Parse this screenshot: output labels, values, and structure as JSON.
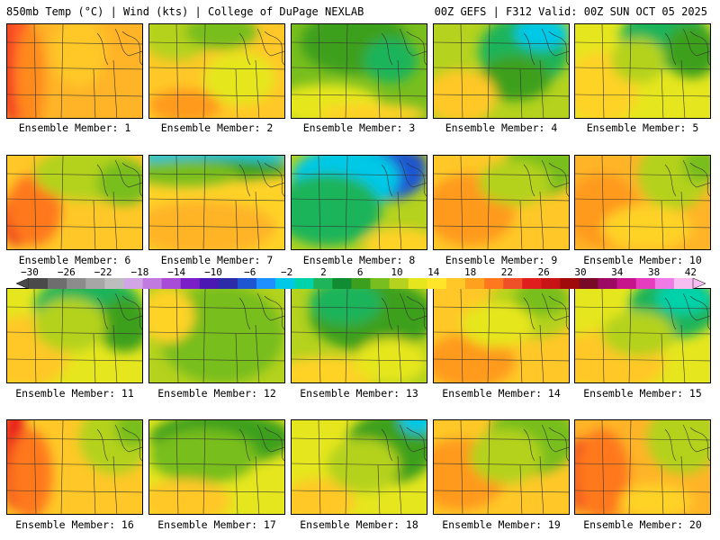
{
  "header": {
    "left_title": "850mb Temp (°C) | Wind (kts) | College of DuPage NEXLAB",
    "right_title": "00Z GEFS | F312 Valid: 00Z SUN OCT 05 2025"
  },
  "colorbar": {
    "tick_labels": [
      "−30",
      "−26",
      "−22",
      "−18",
      "−14",
      "−10",
      "−6",
      "−2",
      "2",
      "6",
      "10",
      "14",
      "18",
      "22",
      "26",
      "30",
      "34",
      "38",
      "42"
    ],
    "colors": [
      "#4a4a4a",
      "#6e6e6e",
      "#8c8c8c",
      "#a6a6a6",
      "#bdbdbd",
      "#d2a6e6",
      "#c07ae0",
      "#a84cd8",
      "#7a1fc8",
      "#4b18b4",
      "#2c2ca8",
      "#1e56d2",
      "#1e90ff",
      "#00c8e6",
      "#00d2aa",
      "#1eb45a",
      "#128c32",
      "#3ca01e",
      "#78be1e",
      "#b4d21e",
      "#e6e61e",
      "#ffe628",
      "#ffc828",
      "#ffa01e",
      "#ff781e",
      "#f05028",
      "#e01e1e",
      "#c81414",
      "#a00a0a",
      "#780a28",
      "#9c0a64",
      "#c8148c",
      "#e63cbe",
      "#f07ae6",
      "#f8bef2"
    ]
  },
  "panels": [
    {
      "label": "Ensemble Member: 1",
      "base": "#ffb428",
      "zones": [
        [
          "#e81e1e",
          6,
          40,
          14,
          70
        ],
        [
          "#ff5a28",
          14,
          30,
          12,
          80
        ],
        [
          "#ff8a1e",
          26,
          60,
          16,
          60
        ],
        [
          "#ffc828",
          80,
          30,
          30,
          40
        ]
      ]
    },
    {
      "label": "Ensemble Member: 2",
      "base": "#ffc828",
      "zones": [
        [
          "#b4d21e",
          30,
          10,
          40,
          30
        ],
        [
          "#78be1e",
          80,
          8,
          40,
          20
        ],
        [
          "#ff9a1e",
          40,
          90,
          40,
          18
        ],
        [
          "#e6e61e",
          100,
          60,
          40,
          30
        ]
      ]
    },
    {
      "label": "Ensemble Member: 3",
      "base": "#78be1e",
      "zones": [
        [
          "#3ca01e",
          70,
          20,
          60,
          35
        ],
        [
          "#1eb45a",
          110,
          40,
          30,
          25
        ],
        [
          "#e6e61e",
          40,
          90,
          60,
          24
        ],
        [
          "#ffd228",
          90,
          100,
          60,
          12
        ]
      ]
    },
    {
      "label": "Ensemble Member: 4",
      "base": "#b4d21e",
      "zones": [
        [
          "#1eb45a",
          100,
          30,
          50,
          40
        ],
        [
          "#00c8e6",
          120,
          10,
          30,
          18
        ],
        [
          "#3ca01e",
          90,
          60,
          40,
          25
        ],
        [
          "#ffc828",
          30,
          80,
          40,
          30
        ]
      ]
    },
    {
      "label": "Ensemble Member: 5",
      "base": "#e6e61e",
      "zones": [
        [
          "#1eb45a",
          100,
          15,
          50,
          35
        ],
        [
          "#3ca01e",
          130,
          30,
          30,
          30
        ],
        [
          "#ffd228",
          30,
          70,
          40,
          40
        ],
        [
          "#b4d21e",
          70,
          40,
          30,
          25
        ]
      ]
    },
    {
      "label": "Ensemble Member: 6",
      "base": "#ffc828",
      "zones": [
        [
          "#e81e1e",
          12,
          70,
          18,
          30
        ],
        [
          "#ff781e",
          30,
          60,
          30,
          40
        ],
        [
          "#b4d21e",
          90,
          20,
          60,
          30
        ],
        [
          "#78be1e",
          130,
          30,
          30,
          25
        ]
      ]
    },
    {
      "label": "Ensemble Member: 7",
      "base": "#ffd228",
      "zones": [
        [
          "#00c8e6",
          70,
          0,
          90,
          10
        ],
        [
          "#3ca01e",
          70,
          15,
          90,
          12
        ],
        [
          "#78be1e",
          40,
          20,
          60,
          14
        ],
        [
          "#ffb428",
          60,
          80,
          80,
          30
        ]
      ]
    },
    {
      "label": "Ensemble Member: 8",
      "base": "#b4d21e",
      "zones": [
        [
          "#2c2ca8",
          110,
          10,
          40,
          20
        ],
        [
          "#1e56d2",
          100,
          20,
          50,
          30
        ],
        [
          "#00c8e6",
          60,
          25,
          60,
          35
        ],
        [
          "#1eb45a",
          40,
          60,
          60,
          40
        ],
        [
          "#ffd228",
          120,
          100,
          40,
          20
        ]
      ]
    },
    {
      "label": "Ensemble Member: 9",
      "base": "#ffc828",
      "zones": [
        [
          "#ff9a1e",
          40,
          60,
          50,
          40
        ],
        [
          "#78be1e",
          120,
          10,
          40,
          35
        ],
        [
          "#b4d21e",
          90,
          30,
          40,
          25
        ]
      ]
    },
    {
      "label": "Ensemble Member: 10",
      "base": "#ffb428",
      "zones": [
        [
          "#ff9a1e",
          30,
          60,
          40,
          40
        ],
        [
          "#b4d21e",
          110,
          20,
          40,
          40
        ],
        [
          "#78be1e",
          140,
          10,
          20,
          20
        ],
        [
          "#ffd228",
          80,
          80,
          50,
          25
        ]
      ]
    },
    {
      "label": "Ensemble Member: 11",
      "base": "#e6e61e",
      "zones": [
        [
          "#1eb45a",
          90,
          20,
          60,
          35
        ],
        [
          "#3ca01e",
          130,
          40,
          30,
          30
        ],
        [
          "#ffc828",
          20,
          70,
          50,
          40
        ],
        [
          "#b4d21e",
          70,
          40,
          40,
          30
        ]
      ]
    },
    {
      "label": "Ensemble Member: 12",
      "base": "#b4d21e",
      "zones": [
        [
          "#00c8e6",
          80,
          50,
          28,
          24
        ],
        [
          "#1eb45a",
          75,
          50,
          48,
          38
        ],
        [
          "#78be1e",
          80,
          50,
          70,
          55
        ],
        [
          "#ffd228",
          20,
          30,
          30,
          30
        ]
      ]
    },
    {
      "label": "Ensemble Member: 13",
      "base": "#b4d21e",
      "zones": [
        [
          "#3ca01e",
          90,
          30,
          70,
          40
        ],
        [
          "#1eb45a",
          60,
          15,
          40,
          25
        ],
        [
          "#ffd228",
          40,
          95,
          60,
          20
        ],
        [
          "#e6e61e",
          110,
          80,
          40,
          25
        ]
      ]
    },
    {
      "label": "Ensemble Member: 14",
      "base": "#ffc828",
      "zones": [
        [
          "#b4d21e",
          110,
          20,
          50,
          35
        ],
        [
          "#78be1e",
          120,
          10,
          30,
          20
        ],
        [
          "#ff9a1e",
          40,
          80,
          50,
          30
        ],
        [
          "#e6e61e",
          70,
          40,
          40,
          25
        ]
      ]
    },
    {
      "label": "Ensemble Member: 15",
      "base": "#e6e61e",
      "zones": [
        [
          "#1eb45a",
          110,
          20,
          50,
          35
        ],
        [
          "#00d2aa",
          120,
          10,
          30,
          18
        ],
        [
          "#ffc828",
          40,
          80,
          60,
          35
        ],
        [
          "#b4d21e",
          70,
          50,
          40,
          25
        ]
      ]
    },
    {
      "label": "Ensemble Member: 16",
      "base": "#ffc828",
      "zones": [
        [
          "#e81e1e",
          8,
          40,
          14,
          60
        ],
        [
          "#ff781e",
          26,
          60,
          24,
          50
        ],
        [
          "#b4d21e",
          120,
          20,
          40,
          40
        ],
        [
          "#78be1e",
          140,
          10,
          20,
          20
        ]
      ]
    },
    {
      "label": "Ensemble Member: 17",
      "base": "#e6e61e",
      "zones": [
        [
          "#3ca01e",
          80,
          20,
          80,
          30
        ],
        [
          "#78be1e",
          60,
          40,
          60,
          30
        ],
        [
          "#ffc828",
          40,
          90,
          50,
          25
        ]
      ]
    },
    {
      "label": "Ensemble Member: 18",
      "base": "#e6e61e",
      "zones": [
        [
          "#3ca01e",
          110,
          30,
          50,
          40
        ],
        [
          "#00c8e6",
          140,
          0,
          20,
          15
        ],
        [
          "#ffc828",
          30,
          90,
          40,
          25
        ],
        [
          "#b4d21e",
          80,
          50,
          40,
          30
        ]
      ]
    },
    {
      "label": "Ensemble Member: 19",
      "base": "#ffc828",
      "zones": [
        [
          "#ff9a1e",
          30,
          60,
          50,
          40
        ],
        [
          "#78be1e",
          110,
          20,
          50,
          40
        ],
        [
          "#b4d21e",
          80,
          40,
          40,
          30
        ]
      ]
    },
    {
      "label": "Ensemble Member: 20",
      "base": "#ffb428",
      "zones": [
        [
          "#e81e1e",
          6,
          60,
          12,
          40
        ],
        [
          "#ff781e",
          30,
          60,
          30,
          50
        ],
        [
          "#b4d21e",
          120,
          20,
          40,
          40
        ],
        [
          "#ffd228",
          90,
          90,
          40,
          20
        ]
      ]
    }
  ]
}
